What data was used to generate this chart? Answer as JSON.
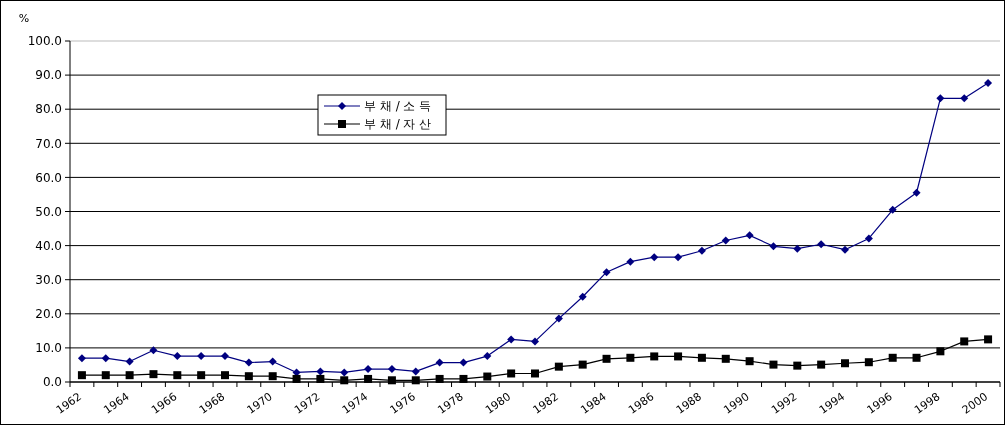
{
  "chart_data": {
    "type": "line",
    "ylabel": "%",
    "categories": [
      "1962",
      null,
      "1964",
      null,
      "1966",
      null,
      "1968",
      null,
      "1970",
      null,
      "1972",
      null,
      "1974",
      null,
      "1976",
      null,
      "1978",
      null,
      "1980",
      null,
      "1982",
      null,
      "1984",
      null,
      "1986",
      null,
      "1988",
      null,
      "1990",
      null,
      "1992",
      null,
      "1994",
      null,
      "1996",
      null,
      "1998",
      null,
      "2000"
    ],
    "series": [
      {
        "name": "부 채 / 소 득",
        "color": "#000080",
        "marker": "diamond",
        "values": [
          7.0,
          7.0,
          6.0,
          9.3,
          7.6,
          7.6,
          7.6,
          5.7,
          6.0,
          2.8,
          3.1,
          2.8,
          3.8,
          3.8,
          3.1,
          5.7,
          5.7,
          7.6,
          12.5,
          11.9,
          18.6,
          25.0,
          32.2,
          35.3,
          36.6,
          36.6,
          38.5,
          41.5,
          43.0,
          39.8,
          39.1,
          40.4,
          38.8,
          42.1,
          50.5,
          55.5,
          83.2,
          83.2,
          87.7
        ]
      },
      {
        "name": "부 채 / 자 산",
        "color": "#000000",
        "marker": "square",
        "values": [
          2.0,
          2.0,
          2.0,
          2.3,
          2.0,
          2.0,
          2.0,
          1.7,
          1.7,
          0.9,
          0.9,
          0.5,
          0.9,
          0.5,
          0.5,
          0.9,
          0.9,
          1.6,
          2.5,
          2.5,
          4.5,
          5.1,
          6.8,
          7.1,
          7.5,
          7.5,
          7.1,
          6.8,
          6.1,
          5.1,
          4.8,
          5.1,
          5.5,
          5.8,
          7.1,
          7.1,
          9.0,
          11.9,
          12.5
        ]
      }
    ],
    "ylim": [
      0,
      100
    ],
    "yticks": [
      {
        "value": 0,
        "label": "0.0"
      },
      {
        "value": 10,
        "label": "10.0"
      },
      {
        "value": 20,
        "label": "20.0"
      },
      {
        "value": 30,
        "label": "30.0"
      },
      {
        "value": 40,
        "label": "40.0"
      },
      {
        "value": 50,
        "label": "50.0"
      },
      {
        "value": 60,
        "label": "60.0"
      },
      {
        "value": 70,
        "label": "70.0"
      },
      {
        "value": 80,
        "label": "80.0"
      },
      {
        "value": 90,
        "label": "90.0"
      },
      {
        "value": 100,
        "label": "100.0"
      }
    ],
    "grid": "y",
    "legend": "top left"
  }
}
